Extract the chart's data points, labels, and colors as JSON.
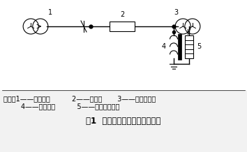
{
  "bg_color": "#f2f2f2",
  "line_color": "#000000",
  "title": "图1  接地补偿装置的原理接线图",
  "legend_line1": "图中：1——主变压器          2——开关柜       3——接地变压器",
  "legend_line2": "        4——消弧线圈          5——氧化锌避雷器",
  "title_fontsize": 8.5,
  "legend_fontsize": 7.0
}
